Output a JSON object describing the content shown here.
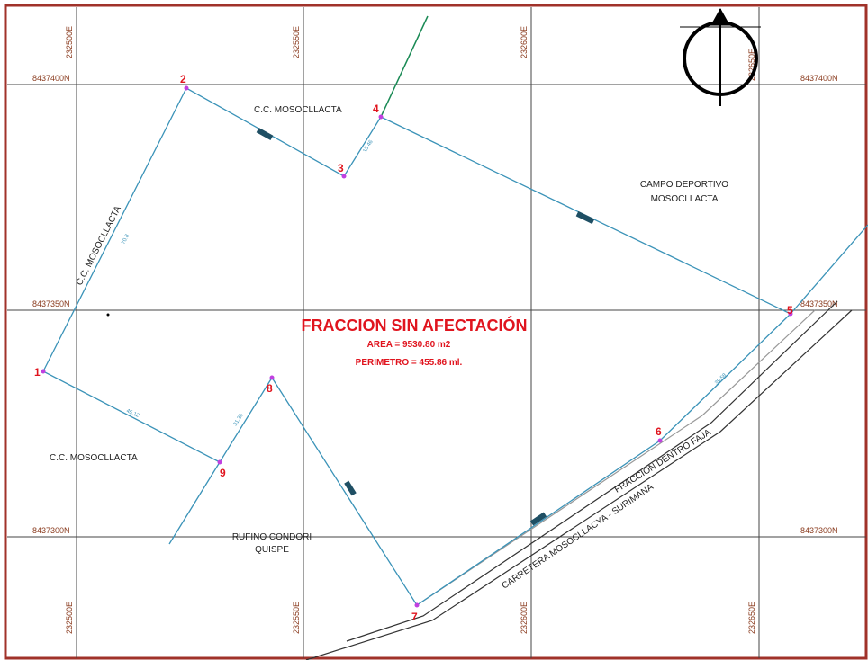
{
  "grid": {
    "eastings": [
      "232500E",
      "232550E",
      "232600E",
      "232650E"
    ],
    "northings": [
      "8437400N",
      "8437350N",
      "8437300N"
    ]
  },
  "vertices": [
    "1",
    "2",
    "3",
    "4",
    "5",
    "6",
    "7",
    "8",
    "9"
  ],
  "labels": {
    "owner_north": "C.C. MOSOCLLACTA",
    "owner_west": "C.C. MOSOCLLACTA",
    "owner_southwest": "C.C. MOSOCLLACTA",
    "campo_line1": "CAMPO DEPORTIVO",
    "campo_line2": "MOSOCLLACTA",
    "rufino_line1": "RUFINO CONDORI",
    "rufino_line2": "QUISPE",
    "fraccion_faja": "FRACCION DENTRO FAJA",
    "carretera": "CARRETERA MOSOCLLACYA - SURIMANA"
  },
  "summary": {
    "title": "FRACCION SIN AFECTACIÓN",
    "area": "AREA = 9530.80 m2",
    "perimetro": "PERIMETRO = 455.86 ml."
  },
  "segments": [
    "70.8",
    "15.46",
    "45.12",
    "31.36",
    "39.58"
  ]
}
